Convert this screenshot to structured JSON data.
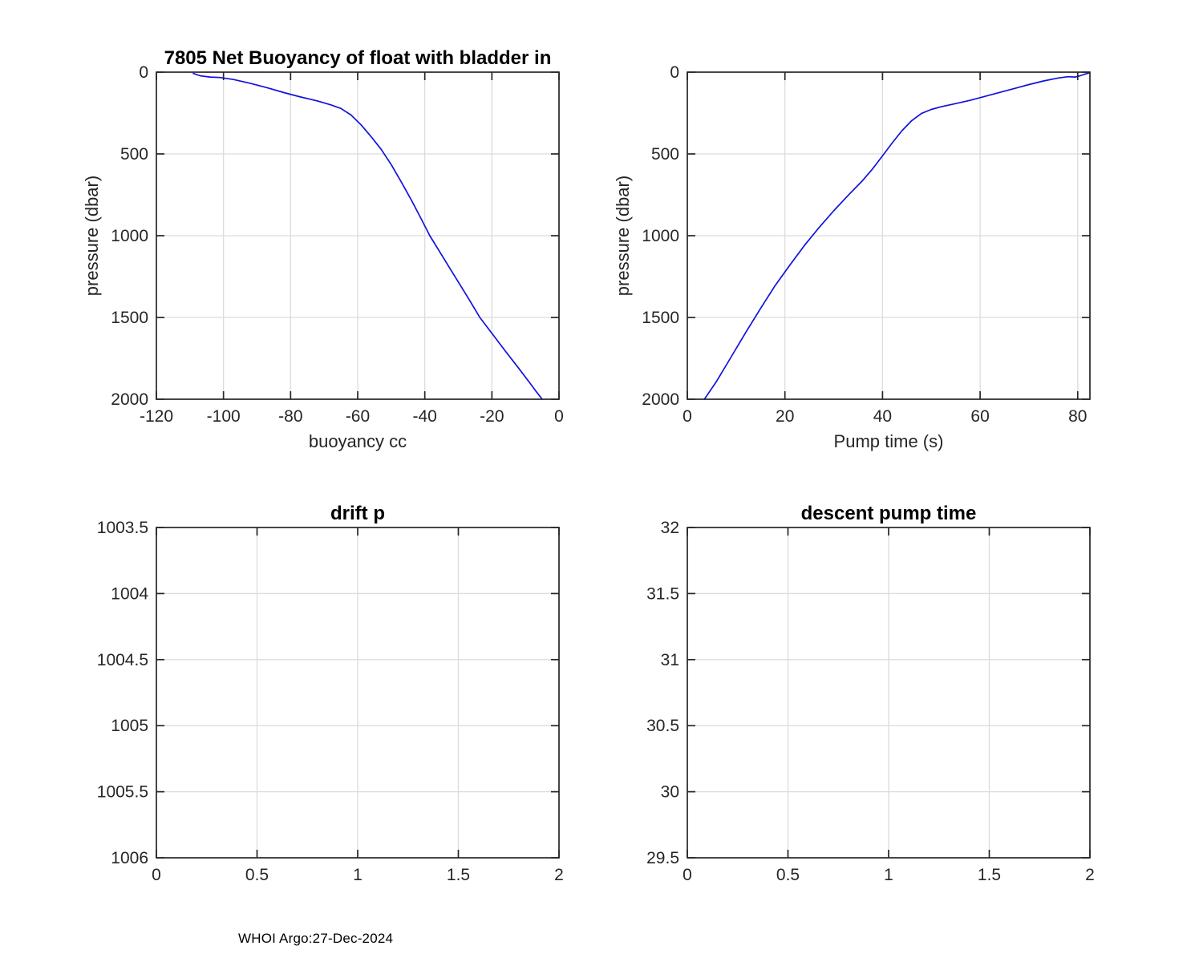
{
  "figure": {
    "background": "#ffffff",
    "line_color": "#1111dd",
    "grid_color": "#dcdcdc",
    "axis_color": "#262626",
    "title_color": "#000000"
  },
  "footer": {
    "text": "WHOI Argo:27-Dec-2024"
  },
  "chart_data": [
    {
      "id": "net-buoyancy",
      "type": "line",
      "title": "7805 Net Buoyancy of float with bladder in",
      "xlabel": "buoyancy cc",
      "ylabel": "pressure (dbar)",
      "xlim": [
        -120,
        0
      ],
      "ylim": [
        0,
        2000
      ],
      "y_inverted": true,
      "grid": true,
      "xticks": [
        -120,
        -100,
        -80,
        -60,
        -40,
        -20,
        0
      ],
      "yticks": [
        0,
        500,
        1000,
        1500,
        2000
      ],
      "series": [
        {
          "name": "net-buoyancy-profile",
          "x": [
            -109,
            -107,
            -104,
            -101,
            -97,
            -92,
            -87,
            -82,
            -77,
            -72,
            -68,
            -65,
            -62,
            -59,
            -56,
            -53,
            -50,
            -47,
            -44,
            -41,
            -38.5,
            -35.5,
            -32.5,
            -29.5,
            -26.5,
            -23.6,
            -19.9,
            -16.2,
            -12.4,
            -8.7,
            -6.9,
            -5
          ],
          "y": [
            8,
            22,
            30,
            33,
            45,
            68,
            95,
            125,
            152,
            176,
            200,
            222,
            262,
            322,
            394,
            472,
            565,
            672,
            782,
            900,
            1000,
            1100,
            1200,
            1300,
            1400,
            1500,
            1600,
            1700,
            1800,
            1900,
            1950,
            2000
          ]
        }
      ]
    },
    {
      "id": "pump-time",
      "type": "line",
      "title": "",
      "xlabel": "Pump time (s)",
      "ylabel": "pressure (dbar)",
      "xlim": [
        0,
        82.5
      ],
      "ylim": [
        0,
        2000
      ],
      "y_inverted": true,
      "grid": true,
      "xticks": [
        0,
        20,
        40,
        60,
        80
      ],
      "yticks": [
        0,
        500,
        1000,
        1500,
        2000
      ],
      "series": [
        {
          "name": "pump-time-profile",
          "x": [
            3.5,
            6,
            9,
            12,
            15,
            18,
            21,
            24,
            27,
            30,
            33,
            36,
            38,
            40,
            42,
            44,
            46,
            48,
            50,
            52,
            55,
            58,
            61,
            64,
            67,
            70,
            73,
            76,
            78,
            79.5,
            80.5,
            81.5,
            82.3
          ],
          "y": [
            2000,
            1890,
            1740,
            1590,
            1445,
            1305,
            1180,
            1060,
            950,
            848,
            752,
            660,
            590,
            512,
            432,
            358,
            296,
            252,
            228,
            212,
            192,
            172,
            148,
            124,
            100,
            76,
            54,
            36,
            28,
            30,
            22,
            12,
            5
          ]
        }
      ]
    },
    {
      "id": "drift-p",
      "type": "line",
      "title": "drift p",
      "xlabel": "",
      "ylabel": "",
      "xlim": [
        0,
        2
      ],
      "ylim": [
        1003.5,
        1006
      ],
      "y_inverted": true,
      "grid": true,
      "xticks": [
        0,
        0.5,
        1,
        1.5,
        2
      ],
      "yticks": [
        1003.5,
        1004,
        1004.5,
        1005,
        1005.5,
        1006
      ],
      "series": []
    },
    {
      "id": "descent-pump-time",
      "type": "line",
      "title": "descent pump time",
      "xlabel": "",
      "ylabel": "",
      "xlim": [
        0,
        2
      ],
      "ylim": [
        29.5,
        32
      ],
      "y_inverted": false,
      "grid": true,
      "xticks": [
        0,
        0.5,
        1,
        1.5,
        2
      ],
      "yticks": [
        29.5,
        30,
        30.5,
        31,
        31.5,
        32
      ],
      "series": []
    }
  ]
}
